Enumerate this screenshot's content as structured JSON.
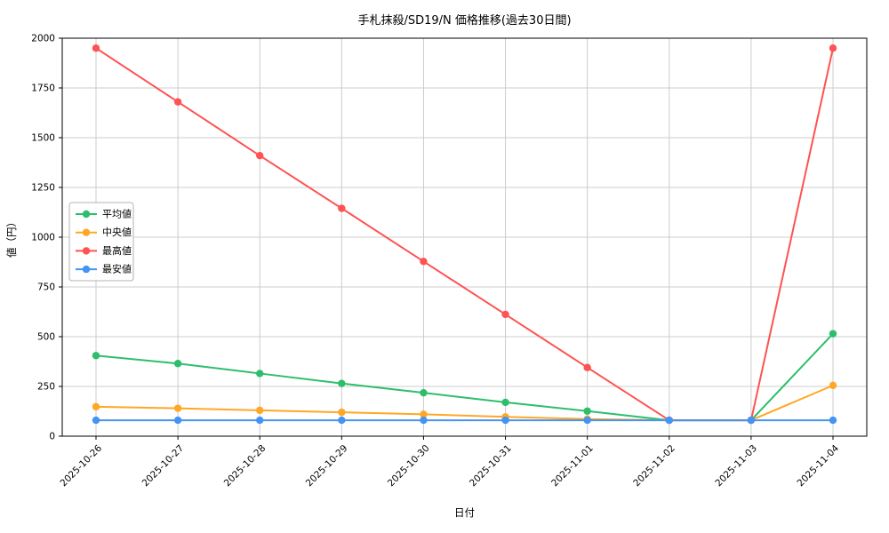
{
  "chart_data": {
    "type": "line",
    "title": "手札抹殺/SD19/N 価格推移(過去30日間)",
    "xlabel": "日付",
    "ylabel": "値（円）",
    "categories": [
      "2025-10-26",
      "2025-10-27",
      "2025-10-28",
      "2025-10-29",
      "2025-10-30",
      "2025-10-31",
      "2025-11-01",
      "2025-11-02",
      "2025-11-03",
      "2025-11-04"
    ],
    "ylim": [
      0,
      2000
    ],
    "yticks": [
      0,
      250,
      500,
      750,
      1000,
      1250,
      1500,
      1750,
      2000
    ],
    "grid": true,
    "legend_position": "center-left",
    "colors": {
      "grid": "#cccccc",
      "axis": "#000000",
      "legend_border": "#b3b3b3",
      "background": "#ffffff"
    },
    "series": [
      {
        "name": "平均値",
        "color": "#2dbe6c",
        "values": [
          405,
          365,
          315,
          265,
          218,
          170,
          126,
          80,
          80,
          515
        ]
      },
      {
        "name": "中央値",
        "color": "#ffa726",
        "values": [
          148,
          140,
          130,
          120,
          110,
          97,
          86,
          80,
          80,
          255
        ]
      },
      {
        "name": "最高値",
        "color": "#ff5252",
        "values": [
          1950,
          1680,
          1410,
          1145,
          878,
          612,
          345,
          80,
          80,
          1950
        ]
      },
      {
        "name": "最安値",
        "color": "#4494f5",
        "values": [
          80,
          80,
          80,
          80,
          80,
          80,
          80,
          80,
          80,
          80
        ]
      }
    ]
  }
}
